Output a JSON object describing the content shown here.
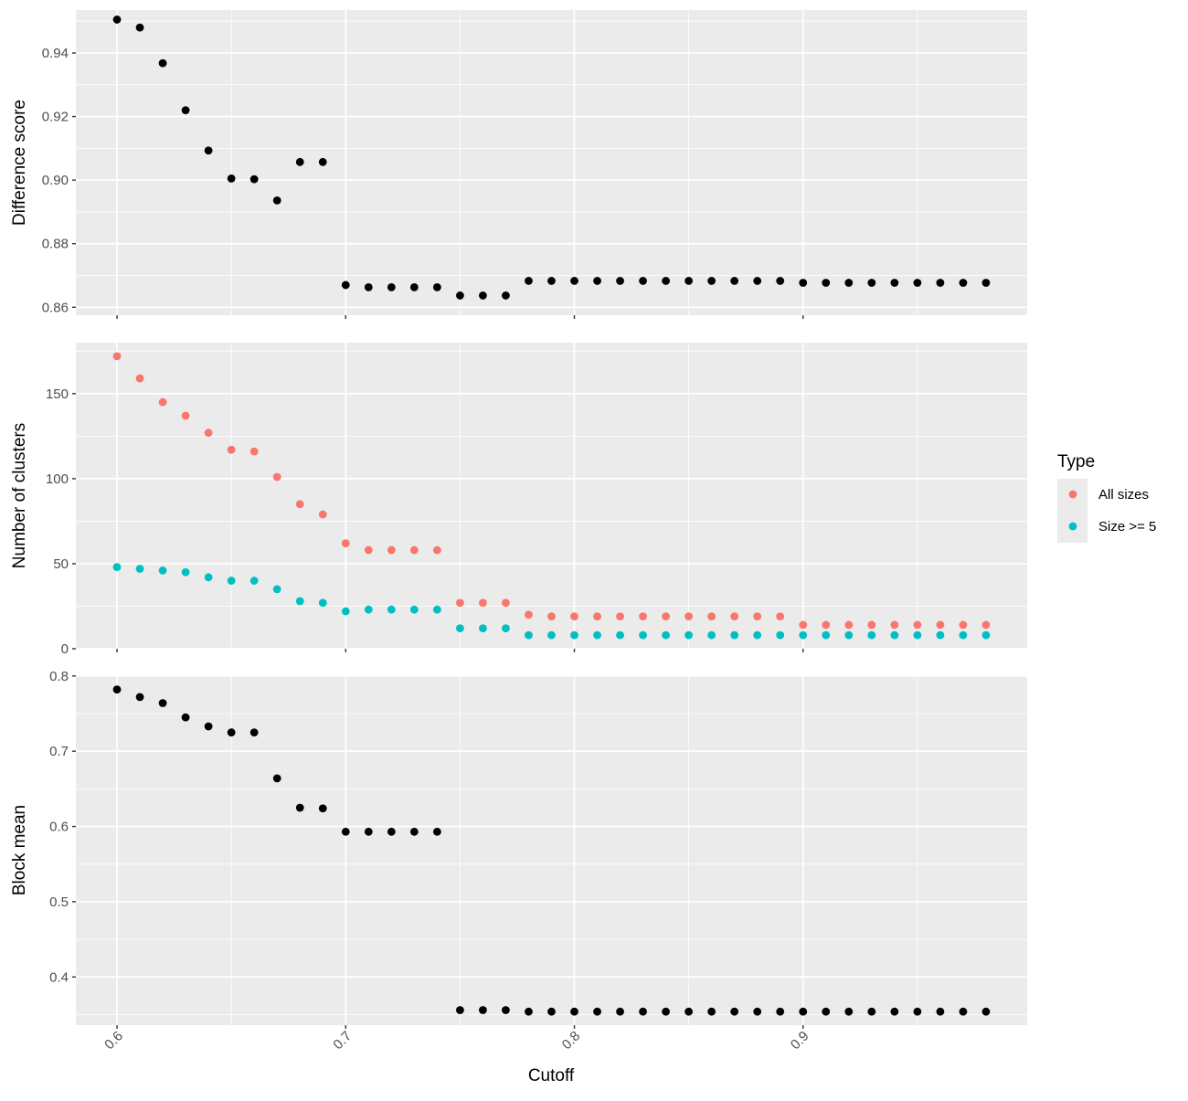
{
  "chart_data": {
    "type": "scatter",
    "facet_layout": "vertical, shared x-axis",
    "xlabel": "Cutoff",
    "xlim": [
      0.582,
      0.998
    ],
    "x_ticks": [
      0.6,
      0.7,
      0.8,
      0.9
    ],
    "x_tick_labels": [
      "0.6",
      "0.7",
      "0.8",
      "0.9"
    ],
    "x_tick_rotation": -45,
    "grid": true,
    "panels": [
      {
        "ylabel": "Difference score",
        "ylim": [
          0.8575,
          0.9535
        ],
        "y_ticks": [
          0.86,
          0.88,
          0.9,
          0.92,
          0.94
        ],
        "y_tick_labels": [
          "0.86",
          "0.88",
          "0.90",
          "0.92",
          "0.94"
        ],
        "series": [
          {
            "color": "#000000",
            "x": [
              0.6,
              0.61,
              0.62,
              0.63,
              0.64,
              0.65,
              0.66,
              0.67,
              0.68,
              0.69,
              0.7,
              0.71,
              0.72,
              0.73,
              0.74,
              0.75,
              0.76,
              0.77,
              0.78,
              0.79,
              0.8,
              0.81,
              0.82,
              0.83,
              0.84,
              0.85,
              0.86,
              0.87,
              0.88,
              0.89,
              0.9,
              0.91,
              0.92,
              0.93,
              0.94,
              0.95,
              0.96,
              0.97,
              0.98
            ],
            "y": [
              0.9505,
              0.948,
              0.9368,
              0.922,
              0.9093,
              0.9005,
              0.9003,
              0.8936,
              0.9057,
              0.9057,
              0.867,
              0.8663,
              0.8663,
              0.8663,
              0.8663,
              0.8637,
              0.8637,
              0.8637,
              0.8683,
              0.8683,
              0.8683,
              0.8683,
              0.8683,
              0.8683,
              0.8683,
              0.8683,
              0.8683,
              0.8683,
              0.8683,
              0.8683,
              0.8677,
              0.8677,
              0.8677,
              0.8677,
              0.8677,
              0.8677,
              0.8677,
              0.8677,
              0.8677
            ]
          }
        ]
      },
      {
        "ylabel": "Number of clusters",
        "ylim": [
          0,
          180
        ],
        "y_ticks": [
          0,
          50,
          100,
          150
        ],
        "y_tick_labels": [
          "0",
          "50",
          "100",
          "150"
        ],
        "series": [
          {
            "name": "All sizes",
            "color": "#F8766D",
            "x": [
              0.6,
              0.61,
              0.62,
              0.63,
              0.64,
              0.65,
              0.66,
              0.67,
              0.68,
              0.69,
              0.7,
              0.71,
              0.72,
              0.73,
              0.74,
              0.75,
              0.76,
              0.77,
              0.78,
              0.79,
              0.8,
              0.81,
              0.82,
              0.83,
              0.84,
              0.85,
              0.86,
              0.87,
              0.88,
              0.89,
              0.9,
              0.91,
              0.92,
              0.93,
              0.94,
              0.95,
              0.96,
              0.97,
              0.98
            ],
            "y": [
              172,
              159,
              145,
              137,
              127,
              117,
              116,
              101,
              85,
              79,
              62,
              58,
              58,
              58,
              58,
              27,
              27,
              27,
              20,
              19,
              19,
              19,
              19,
              19,
              19,
              19,
              19,
              19,
              19,
              19,
              14,
              14,
              14,
              14,
              14,
              14,
              14,
              14,
              14
            ]
          },
          {
            "name": "Size >= 5",
            "color": "#00BFC4",
            "x": [
              0.6,
              0.61,
              0.62,
              0.63,
              0.64,
              0.65,
              0.66,
              0.67,
              0.68,
              0.69,
              0.7,
              0.71,
              0.72,
              0.73,
              0.74,
              0.75,
              0.76,
              0.77,
              0.78,
              0.79,
              0.8,
              0.81,
              0.82,
              0.83,
              0.84,
              0.85,
              0.86,
              0.87,
              0.88,
              0.89,
              0.9,
              0.91,
              0.92,
              0.93,
              0.94,
              0.95,
              0.96,
              0.97,
              0.98
            ],
            "y": [
              48,
              47,
              46,
              45,
              42,
              40,
              40,
              35,
              28,
              27,
              22,
              23,
              23,
              23,
              23,
              12,
              12,
              12,
              8,
              8,
              8,
              8,
              8,
              8,
              8,
              8,
              8,
              8,
              8,
              8,
              8,
              8,
              8,
              8,
              8,
              8,
              8,
              8,
              8
            ]
          }
        ]
      },
      {
        "ylabel": "Block mean",
        "ylim": [
          0.336,
          0.801
        ],
        "y_ticks": [
          0.4,
          0.5,
          0.6,
          0.7,
          0.8
        ],
        "y_tick_labels": [
          "0.4",
          "0.5",
          "0.6",
          "0.7",
          "0.8"
        ],
        "series": [
          {
            "color": "#000000",
            "x": [
              0.6,
              0.61,
              0.62,
              0.63,
              0.64,
              0.65,
              0.66,
              0.67,
              0.68,
              0.69,
              0.7,
              0.71,
              0.72,
              0.73,
              0.74,
              0.75,
              0.76,
              0.77,
              0.78,
              0.79,
              0.8,
              0.81,
              0.82,
              0.83,
              0.84,
              0.85,
              0.86,
              0.87,
              0.88,
              0.89,
              0.9,
              0.91,
              0.92,
              0.93,
              0.94,
              0.95,
              0.96,
              0.97,
              0.98
            ],
            "y": [
              0.782,
              0.772,
              0.764,
              0.745,
              0.733,
              0.725,
              0.725,
              0.664,
              0.625,
              0.624,
              0.593,
              0.593,
              0.593,
              0.593,
              0.593,
              0.356,
              0.356,
              0.356,
              0.354,
              0.354,
              0.354,
              0.354,
              0.354,
              0.354,
              0.354,
              0.354,
              0.354,
              0.354,
              0.354,
              0.354,
              0.354,
              0.354,
              0.354,
              0.354,
              0.354,
              0.354,
              0.354,
              0.354,
              0.354
            ]
          }
        ]
      }
    ],
    "legend": {
      "title": "Type",
      "placement": "right",
      "entries": [
        {
          "label": "All sizes",
          "color": "#F8766D"
        },
        {
          "label": "Size >= 5",
          "color": "#00BFC4"
        }
      ]
    }
  }
}
